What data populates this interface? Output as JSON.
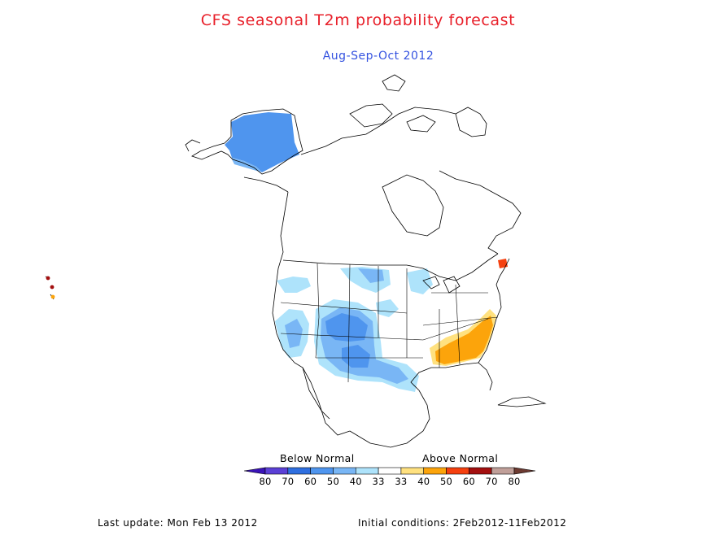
{
  "title": "CFS seasonal T2m probability forecast",
  "subtitle": "Aug-Sep-Oct 2012",
  "title_color": "#e8202a",
  "subtitle_color": "#3553e0",
  "legend": {
    "below_label": "Below Normal",
    "above_label": "Above Normal",
    "ticks": [
      "80",
      "70",
      "60",
      "50",
      "40",
      "33",
      "33",
      "40",
      "50",
      "60",
      "70",
      "80"
    ],
    "colors": [
      "#3a13b8",
      "#5b40d6",
      "#2f6fe0",
      "#4f95ee",
      "#79b6f5",
      "#aee3fb",
      "#ffffff",
      "#ffe17f",
      "#fca40b",
      "#f5400f",
      "#a30f0f",
      "#c09f99",
      "#6c3a31"
    ]
  },
  "footer": {
    "last_update": "Last update: Mon Feb 13 2012",
    "initial_conditions": "Initial conditions: 2Feb2012-11Feb2012"
  }
}
